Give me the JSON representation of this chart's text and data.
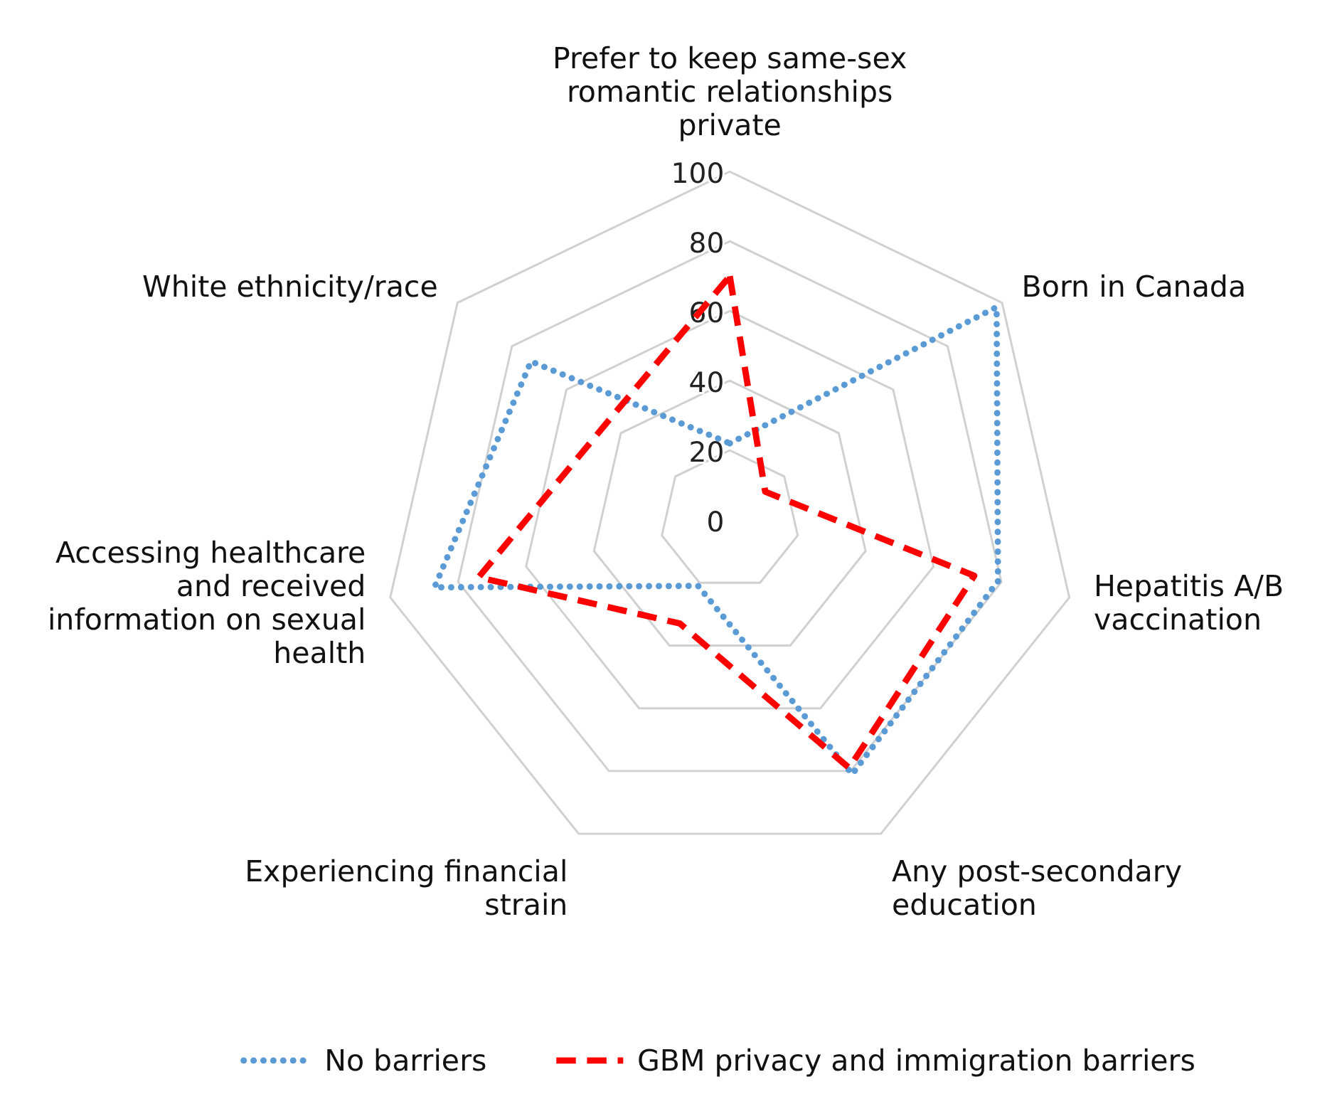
{
  "chart_data": {
    "type": "radar",
    "categories": [
      "Prefer to keep same-sex romantic relationships private",
      "Born in Canada",
      "Hepatitis A/B vaccination",
      "Any post-secondary education",
      "Experiencing financial strain",
      "Accessing healthcare and received information on sexual health",
      "White ethnicity/race"
    ],
    "series": [
      {
        "name": "No barriers",
        "color": "#5b9bd5",
        "line_style": "dotted",
        "values": [
          22,
          98,
          79,
          81,
          21,
          87,
          73
        ]
      },
      {
        "name": "GBM privacy and immigration barriers",
        "color": "#ff0000",
        "line_style": "dashed",
        "values": [
          70,
          13,
          72,
          79,
          33,
          74,
          45
        ]
      }
    ],
    "ylim": [
      0,
      100
    ],
    "yticks": [
      0,
      20,
      40,
      60,
      80,
      100
    ],
    "grid": true,
    "legend": "bottom",
    "marker": "none"
  }
}
